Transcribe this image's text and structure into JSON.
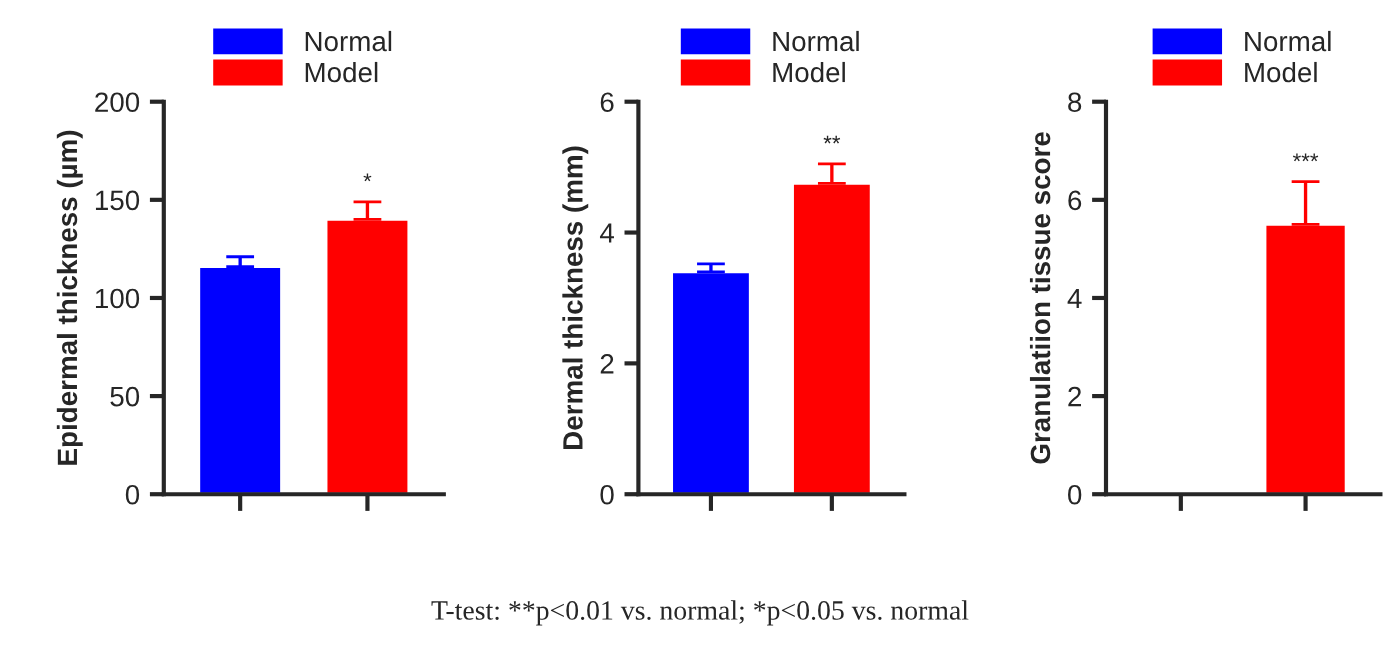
{
  "chart_data": [
    {
      "type": "bar",
      "categories": [
        null,
        null
      ],
      "ylabel": "Epidermal thickness (µm)",
      "ylim": [
        0,
        200
      ],
      "yticks": [
        0,
        50,
        100,
        150,
        200
      ],
      "legend": "top",
      "grid": false,
      "series": [
        {
          "name": "Normal",
          "color": "#0000ff",
          "values": [
            116,
            null
          ],
          "errors": [
            [
              116,
              121
            ],
            null
          ]
        },
        {
          "name": "Model",
          "color": "#ff0000",
          "values": [
            null,
            140
          ],
          "errors": [
            null,
            [
              140,
              149
            ]
          ]
        }
      ],
      "annotations": [
        "*",
        "T-test: **p<0.01 vs. normal; *p<0.05 vs. normal"
      ]
    },
    {
      "type": "bar",
      "categories": [
        null,
        null
      ],
      "ylabel": "Dermal thickness (mm)",
      "ylim": [
        0,
        6
      ],
      "yticks": [
        0,
        2,
        4,
        6
      ],
      "legend": "top",
      "grid": false,
      "series": [
        {
          "name": "Normal",
          "color": "#0000ff",
          "values": [
            3.4,
            null
          ],
          "errors": [
            [
              3.4,
              3.52
            ],
            null
          ]
        },
        {
          "name": "Model",
          "color": "#ff0000",
          "values": [
            null,
            4.75
          ],
          "errors": [
            null,
            [
              4.75,
              5.05
            ]
          ]
        }
      ],
      "annotations": [
        "**"
      ]
    },
    {
      "type": "bar",
      "categories": [
        null,
        null
      ],
      "ylabel": "Granulatiion tissue score",
      "ylim": [
        0,
        8
      ],
      "yticks": [
        0,
        2,
        4,
        6,
        8
      ],
      "legend": "top",
      "grid": false,
      "series": [
        {
          "name": "Normal",
          "color": "#0000ff",
          "values": [
            null,
            null
          ]
        },
        {
          "name": "Model",
          "color": "#ff0000",
          "values": [
            null,
            5.5
          ],
          "errors": [
            null,
            [
              5.5,
              6.37
            ]
          ]
        }
      ],
      "annotations": [
        "***"
      ]
    }
  ]
}
